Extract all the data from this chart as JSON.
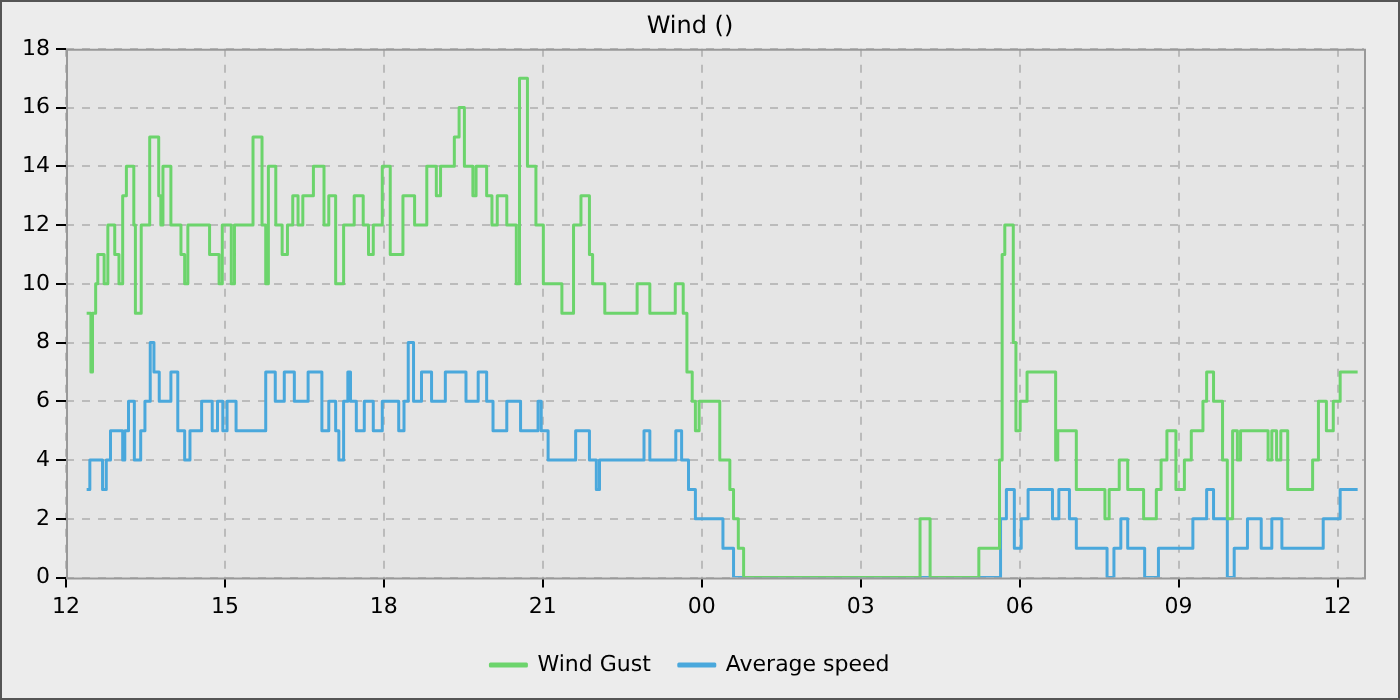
{
  "chart_data": {
    "type": "step",
    "title": "Wind ()",
    "legend": "bottom",
    "grid": true,
    "line_style": "solid",
    "marker": "none",
    "xlim": [
      12,
      36.5
    ],
    "xticks": [
      {
        "value": 12,
        "label": "12"
      },
      {
        "value": 15,
        "label": "15"
      },
      {
        "value": 18,
        "label": "18"
      },
      {
        "value": 21,
        "label": "21"
      },
      {
        "value": 24,
        "label": "00"
      },
      {
        "value": 27,
        "label": "03"
      },
      {
        "value": 30,
        "label": "06"
      },
      {
        "value": 33,
        "label": "09"
      },
      {
        "value": 36,
        "label": "12"
      }
    ],
    "ylim": [
      0,
      18
    ],
    "yticks": [
      0,
      2,
      4,
      6,
      8,
      10,
      12,
      14,
      16,
      18
    ],
    "series": [
      {
        "name": "Wind Gust",
        "color": "#6cd46c",
        "x": [
          12.39,
          12.47,
          12.5,
          12.56,
          12.6,
          12.72,
          12.79,
          12.92,
          13.0,
          13.07,
          13.14,
          13.28,
          13.31,
          13.42,
          13.58,
          13.75,
          13.79,
          13.83,
          13.98,
          14.17,
          14.24,
          14.3,
          14.71,
          14.89,
          14.95,
          15.12,
          15.18,
          15.53,
          15.7,
          15.77,
          15.82,
          15.96,
          16.08,
          16.18,
          16.28,
          16.38,
          16.47,
          16.67,
          16.87,
          16.96,
          17.09,
          17.24,
          17.44,
          17.61,
          17.71,
          17.8,
          17.97,
          18.12,
          18.36,
          18.58,
          18.81,
          18.99,
          19.07,
          19.33,
          19.42,
          19.52,
          19.68,
          19.74,
          19.94,
          20.04,
          20.14,
          20.32,
          20.5,
          20.56,
          20.71,
          20.87,
          21.01,
          21.36,
          21.58,
          21.72,
          21.88,
          21.94,
          22.17,
          22.78,
          23.02,
          23.5,
          23.65,
          23.72,
          23.82,
          23.88,
          23.95,
          24.34,
          24.53,
          24.6,
          24.69,
          24.79,
          28.12,
          28.31,
          29.23,
          29.62,
          29.67,
          29.72,
          29.88,
          29.93,
          30.01,
          30.14,
          30.68,
          30.72,
          31.07,
          31.61,
          31.69,
          31.88,
          32.04,
          32.34,
          32.58,
          32.67,
          32.78,
          32.95,
          33.11,
          33.24,
          33.46,
          33.53,
          33.66,
          33.83,
          33.92,
          34.02,
          34.11,
          34.17,
          34.69,
          34.76,
          34.85,
          34.93,
          35.06,
          35.53,
          35.64,
          35.79,
          35.92,
          36.05,
          36.38
        ],
        "values": [
          9,
          7,
          9,
          10,
          11,
          10,
          12,
          11,
          10,
          13,
          14,
          12,
          9,
          12,
          15,
          13,
          12,
          14,
          12,
          11,
          10,
          12,
          11,
          10,
          12,
          10,
          12,
          15,
          12,
          10,
          14,
          12,
          11,
          12,
          13,
          12,
          13,
          14,
          12,
          13,
          10,
          12,
          13,
          12,
          11,
          12,
          14,
          11,
          13,
          12,
          14,
          13,
          14,
          15,
          16,
          14,
          13,
          14,
          13,
          12,
          13,
          12,
          10,
          17,
          14,
          12,
          10,
          9,
          12,
          13,
          11,
          10,
          9,
          10,
          9,
          10,
          9,
          7,
          6,
          5,
          6,
          4,
          3,
          2,
          1,
          0,
          2,
          0,
          1,
          4,
          11,
          12,
          8,
          5,
          6,
          7,
          4,
          5,
          3,
          2,
          3,
          4,
          3,
          2,
          3,
          4,
          5,
          3,
          4,
          5,
          6,
          7,
          6,
          4,
          2,
          5,
          4,
          5,
          4,
          5,
          4,
          5,
          3,
          4,
          6,
          5,
          6,
          7,
          7
        ]
      },
      {
        "name": "Average speed",
        "color": "#4aa8dc",
        "x": [
          12.39,
          12.45,
          12.69,
          12.76,
          12.84,
          13.07,
          13.11,
          13.18,
          13.29,
          13.41,
          13.49,
          13.59,
          13.66,
          13.76,
          13.98,
          14.11,
          14.24,
          14.34,
          14.56,
          14.76,
          14.86,
          14.96,
          15.04,
          15.21,
          15.77,
          15.95,
          16.12,
          16.31,
          16.57,
          16.83,
          16.96,
          17.09,
          17.15,
          17.24,
          17.32,
          17.37,
          17.48,
          17.63,
          17.8,
          17.97,
          18.28,
          18.38,
          18.46,
          18.56,
          18.71,
          18.9,
          19.16,
          19.55,
          19.78,
          19.94,
          20.06,
          20.32,
          20.58,
          20.91,
          20.97,
          21.1,
          21.62,
          21.88,
          22.01,
          22.07,
          22.91,
          23.02,
          23.51,
          23.62,
          23.75,
          23.88,
          24.4,
          24.6,
          29.64,
          29.75,
          29.9,
          30.03,
          30.16,
          30.62,
          30.74,
          30.94,
          31.07,
          31.65,
          31.78,
          31.91,
          32.04,
          32.36,
          32.62,
          33.27,
          33.53,
          33.66,
          33.92,
          34.05,
          34.3,
          34.56,
          34.76,
          34.95,
          35.73,
          36.05,
          36.38
        ],
        "values": [
          3,
          4,
          3,
          4,
          5,
          4,
          5,
          6,
          4,
          5,
          6,
          8,
          7,
          6,
          7,
          5,
          4,
          5,
          6,
          5,
          6,
          5,
          6,
          5,
          7,
          6,
          7,
          6,
          7,
          5,
          6,
          5,
          4,
          6,
          7,
          6,
          5,
          6,
          5,
          6,
          5,
          6,
          8,
          6,
          7,
          6,
          7,
          6,
          7,
          6,
          5,
          6,
          5,
          6,
          5,
          4,
          5,
          4,
          3,
          4,
          5,
          4,
          5,
          4,
          3,
          2,
          1,
          0,
          2,
          3,
          1,
          2,
          3,
          2,
          3,
          2,
          1,
          0,
          1,
          2,
          1,
          0,
          1,
          2,
          3,
          2,
          0,
          1,
          2,
          1,
          2,
          1,
          2,
          3,
          3
        ]
      }
    ]
  }
}
